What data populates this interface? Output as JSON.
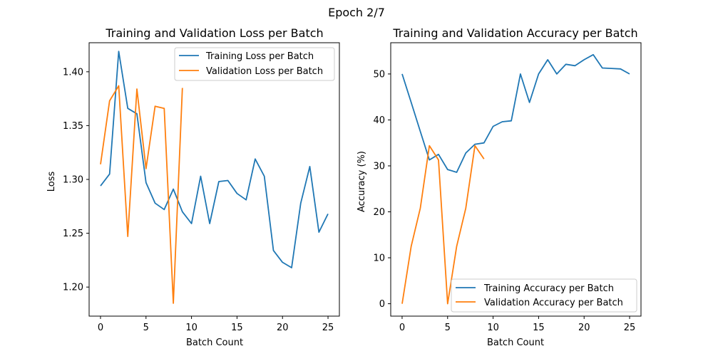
{
  "figure": {
    "suptitle": "Epoch 2/7"
  },
  "colors": {
    "training": "#1f77b4",
    "validation": "#ff7f0e"
  },
  "chart_data": [
    {
      "type": "line",
      "title": "Training and Validation Loss per Batch",
      "xlabel": "Batch Count",
      "ylabel": "Loss",
      "xlim": [
        -1.25,
        26.25
      ],
      "ylim": [
        1.173,
        1.427
      ],
      "xticks": [
        0,
        5,
        10,
        15,
        20,
        25
      ],
      "yticks": [
        1.2,
        1.25,
        1.3,
        1.35,
        1.4
      ],
      "ytick_labels": [
        "1.20",
        "1.25",
        "1.30",
        "1.35",
        "1.40"
      ],
      "grid": false,
      "legend": "top-right",
      "series": [
        {
          "name": "Training Loss per Batch",
          "color": "#1f77b4",
          "x": [
            0,
            1,
            2,
            3,
            4,
            5,
            6,
            7,
            8,
            9,
            10,
            11,
            12,
            13,
            14,
            15,
            16,
            17,
            18,
            19,
            20,
            21,
            22,
            23,
            24,
            25
          ],
          "y": [
            1.294,
            1.305,
            1.419,
            1.366,
            1.361,
            1.297,
            1.278,
            1.272,
            1.291,
            1.27,
            1.259,
            1.303,
            1.259,
            1.298,
            1.299,
            1.287,
            1.281,
            1.319,
            1.303,
            1.234,
            1.223,
            1.218,
            1.278,
            1.312,
            1.251,
            1.268
          ]
        },
        {
          "name": "Validation Loss per Batch",
          "color": "#ff7f0e",
          "x": [
            0,
            1,
            2,
            3,
            4,
            5,
            6,
            7,
            8,
            9
          ],
          "y": [
            1.314,
            1.373,
            1.387,
            1.247,
            1.384,
            1.31,
            1.368,
            1.366,
            1.185,
            1.385
          ]
        }
      ]
    },
    {
      "type": "line",
      "title": "Training and Validation Accuracy per Batch",
      "xlabel": "Batch Count",
      "ylabel": "Accuracy (%)",
      "xlim": [
        -1.25,
        26.25
      ],
      "ylim": [
        -2.7,
        56.8
      ],
      "xticks": [
        0,
        5,
        10,
        15,
        20,
        25
      ],
      "yticks": [
        0,
        10,
        20,
        30,
        40,
        50
      ],
      "ytick_labels": [
        "0",
        "10",
        "20",
        "30",
        "40",
        "50"
      ],
      "grid": false,
      "legend": "bottom-right",
      "series": [
        {
          "name": "Training Accuracy per Batch",
          "color": "#1f77b4",
          "x": [
            0,
            1,
            2,
            3,
            4,
            5,
            6,
            7,
            8,
            9,
            10,
            11,
            12,
            13,
            14,
            15,
            16,
            17,
            18,
            19,
            20,
            21,
            22,
            23,
            24,
            25
          ],
          "y": [
            50.0,
            43.8,
            37.5,
            31.3,
            32.5,
            29.2,
            28.6,
            32.8,
            34.7,
            35.0,
            38.6,
            39.6,
            39.8,
            50.0,
            43.8,
            50.0,
            53.1,
            50.0,
            52.1,
            51.8,
            53.1,
            54.2,
            51.3,
            51.2,
            51.1,
            50.0
          ]
        },
        {
          "name": "Validation Accuracy per Batch",
          "color": "#ff7f0e",
          "x": [
            0,
            1,
            2,
            3,
            4,
            5,
            6,
            7,
            8,
            9
          ],
          "y": [
            0.0,
            12.5,
            20.8,
            34.4,
            31.3,
            0.0,
            12.5,
            20.8,
            34.4,
            31.5
          ]
        }
      ]
    }
  ]
}
